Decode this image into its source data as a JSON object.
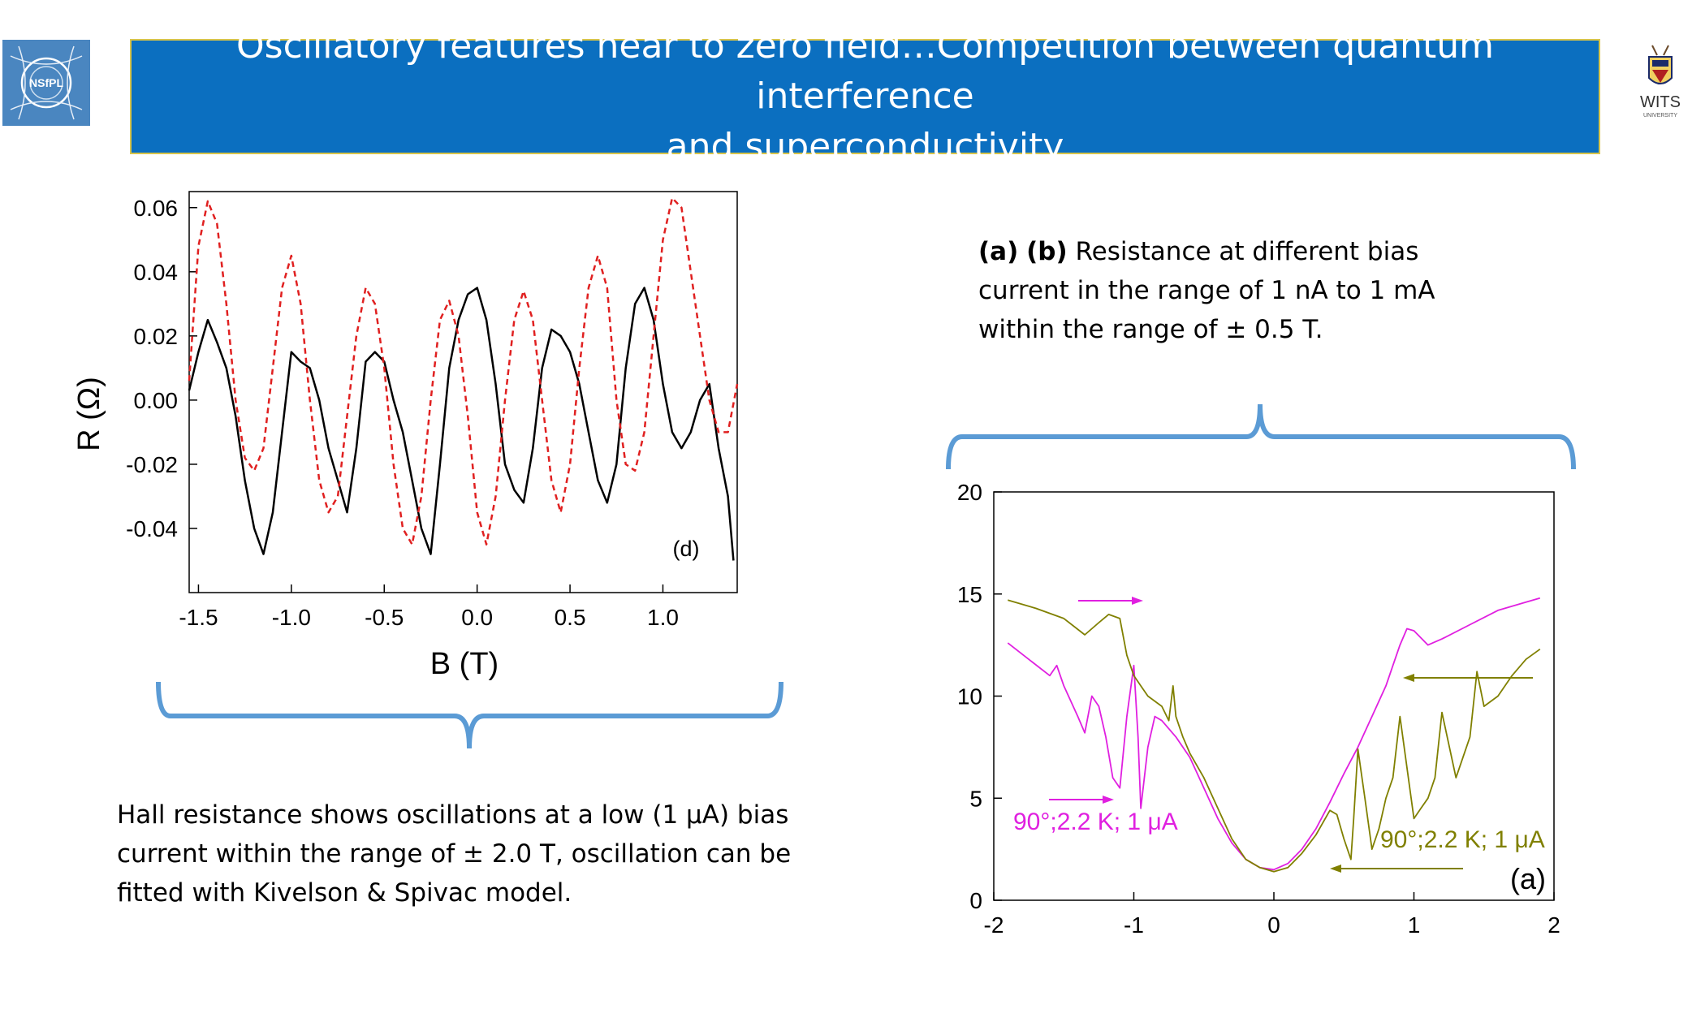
{
  "title": {
    "line1": "Oscillatory features near to zero field…Competition between quantum interference",
    "line2": "and superconductivity"
  },
  "logos": {
    "left_text": "NSfPL",
    "right_text": "WITS",
    "right_subtext": "UNIVERSITY"
  },
  "right_description": {
    "bold_a": "(a)",
    "bold_b": "(b)",
    "rest": " Resistance at different bias current in the range of 1 nA to 1 mA within the range of ± 0.5 T."
  },
  "left_description": {
    "text": "Hall resistance shows oscillations at a low (1 μA) bias current within the range of ± 2.0 T, oscillation can be fitted with Kivelson & Spivac model."
  },
  "colors": {
    "title_bg": "#0b6fc0",
    "title_border": "#d8c44a",
    "bracket": "#5b9bd5",
    "fit_red": "#e02020",
    "data_black": "#000000",
    "magenta": "#e020e0",
    "olive": "#808000"
  },
  "chart_data": [
    {
      "type": "line",
      "panel_label": "(d)",
      "xlabel": "B (T)",
      "ylabel": "R (Ω)",
      "xlim": [
        -1.55,
        1.4
      ],
      "ylim": [
        -0.06,
        0.065
      ],
      "xticks": [
        -1.5,
        -1.0,
        -0.5,
        0.0,
        0.5,
        1.0
      ],
      "xtick_labels": [
        "-1.5",
        "-1.0",
        "-0.5",
        "0.0",
        "0.5",
        "1.0"
      ],
      "yticks": [
        0.06,
        0.04,
        0.02,
        0.0,
        -0.02,
        -0.04
      ],
      "ytick_labels": [
        "0.06",
        "0.04",
        "0.02",
        "0.00",
        "-0.02",
        "-0.04"
      ],
      "grid": false,
      "series": [
        {
          "style": "solid-black",
          "x": [
            -1.55,
            -1.5,
            -1.45,
            -1.4,
            -1.35,
            -1.3,
            -1.25,
            -1.2,
            -1.15,
            -1.1,
            -1.05,
            -1.0,
            -0.95,
            -0.9,
            -0.85,
            -0.8,
            -0.75,
            -0.7,
            -0.65,
            -0.6,
            -0.55,
            -0.5,
            -0.45,
            -0.4,
            -0.35,
            -0.3,
            -0.25,
            -0.2,
            -0.15,
            -0.1,
            -0.05,
            0.0,
            0.05,
            0.1,
            0.15,
            0.2,
            0.25,
            0.3,
            0.35,
            0.4,
            0.45,
            0.5,
            0.55,
            0.6,
            0.65,
            0.7,
            0.75,
            0.8,
            0.85,
            0.9,
            0.95,
            1.0,
            1.05,
            1.1,
            1.15,
            1.2,
            1.25,
            1.3,
            1.35,
            1.38
          ],
          "y": [
            0.003,
            0.015,
            0.025,
            0.018,
            0.01,
            -0.005,
            -0.025,
            -0.04,
            -0.048,
            -0.035,
            -0.01,
            0.015,
            0.012,
            0.01,
            0.0,
            -0.015,
            -0.025,
            -0.035,
            -0.015,
            0.012,
            0.015,
            0.012,
            0.0,
            -0.01,
            -0.025,
            -0.04,
            -0.048,
            -0.02,
            0.01,
            0.025,
            0.033,
            0.035,
            0.025,
            0.005,
            -0.02,
            -0.028,
            -0.032,
            -0.015,
            0.01,
            0.022,
            0.02,
            0.015,
            0.005,
            -0.01,
            -0.025,
            -0.032,
            -0.02,
            0.01,
            0.03,
            0.035,
            0.025,
            0.005,
            -0.01,
            -0.015,
            -0.01,
            0.0,
            0.005,
            -0.015,
            -0.03,
            -0.05
          ]
        },
        {
          "style": "dashed-red",
          "x": [
            -1.55,
            -1.5,
            -1.45,
            -1.4,
            -1.35,
            -1.3,
            -1.25,
            -1.2,
            -1.15,
            -1.1,
            -1.05,
            -1.0,
            -0.95,
            -0.9,
            -0.85,
            -0.8,
            -0.75,
            -0.7,
            -0.65,
            -0.6,
            -0.55,
            -0.5,
            -0.45,
            -0.4,
            -0.35,
            -0.3,
            -0.25,
            -0.2,
            -0.15,
            -0.1,
            -0.05,
            0.0,
            0.05,
            0.1,
            0.15,
            0.2,
            0.25,
            0.3,
            0.35,
            0.4,
            0.45,
            0.5,
            0.55,
            0.6,
            0.65,
            0.7,
            0.75,
            0.8,
            0.85,
            0.9,
            0.95,
            1.0,
            1.05,
            1.1,
            1.15,
            1.2,
            1.25,
            1.3,
            1.35,
            1.4
          ],
          "y": [
            0.006,
            0.048,
            0.062,
            0.055,
            0.03,
            0.0,
            -0.018,
            -0.022,
            -0.015,
            0.01,
            0.035,
            0.045,
            0.03,
            0.0,
            -0.025,
            -0.035,
            -0.03,
            -0.005,
            0.02,
            0.035,
            0.03,
            0.01,
            -0.02,
            -0.04,
            -0.045,
            -0.03,
            0.0,
            0.025,
            0.031,
            0.02,
            -0.005,
            -0.035,
            -0.045,
            -0.03,
            0.0,
            0.025,
            0.034,
            0.025,
            0.0,
            -0.025,
            -0.035,
            -0.02,
            0.01,
            0.035,
            0.045,
            0.035,
            0.0,
            -0.02,
            -0.022,
            -0.01,
            0.02,
            0.05,
            0.063,
            0.06,
            0.04,
            0.02,
            0.0,
            -0.01,
            -0.01,
            0.005
          ]
        }
      ]
    },
    {
      "type": "line",
      "panel_label": "(a)",
      "xlim": [
        -2,
        2
      ],
      "ylim": [
        0,
        20
      ],
      "xticks": [
        -2,
        -1,
        0,
        1,
        2
      ],
      "xtick_labels": [
        "-2",
        "-1",
        "0",
        "1",
        "2"
      ],
      "yticks": [
        0,
        5,
        10,
        15,
        20
      ],
      "ytick_labels": [
        "0",
        "5",
        "10",
        "15",
        "20"
      ],
      "grid": false,
      "annotations": [
        {
          "text": "90°;2.2 K; 1 μA",
          "color": "#e020e0"
        },
        {
          "text": "90°;2.2 K; 1 μA",
          "color": "#808000"
        }
      ],
      "series": [
        {
          "color": "#e020e0",
          "x": [
            -1.9,
            -1.75,
            -1.6,
            -1.55,
            -1.5,
            -1.4,
            -1.35,
            -1.3,
            -1.25,
            -1.2,
            -1.15,
            -1.1,
            -1.05,
            -1.0,
            -0.97,
            -0.95,
            -0.9,
            -0.85,
            -0.8,
            -0.7,
            -0.6,
            -0.5,
            -0.4,
            -0.3,
            -0.2,
            -0.1,
            0.0,
            0.1,
            0.2,
            0.3,
            0.4,
            0.5,
            0.6,
            0.7,
            0.8,
            0.85,
            0.9,
            0.95,
            1.0,
            1.1,
            1.2,
            1.4,
            1.6,
            1.8,
            1.9
          ],
          "y": [
            12.6,
            11.8,
            11.0,
            11.5,
            10.5,
            9.0,
            8.2,
            10.0,
            9.5,
            8.0,
            6.0,
            5.5,
            9.0,
            11.5,
            8.0,
            4.5,
            7.5,
            9.0,
            8.8,
            8.0,
            7.0,
            5.5,
            4.0,
            2.8,
            2.0,
            1.6,
            1.5,
            1.8,
            2.5,
            3.5,
            4.8,
            6.2,
            7.5,
            9.0,
            10.5,
            11.5,
            12.5,
            13.3,
            13.2,
            12.5,
            12.8,
            13.5,
            14.2,
            14.6,
            14.8
          ]
        },
        {
          "color": "#808000",
          "x": [
            -1.9,
            -1.7,
            -1.5,
            -1.35,
            -1.25,
            -1.18,
            -1.1,
            -1.05,
            -1.0,
            -0.95,
            -0.9,
            -0.8,
            -0.75,
            -0.72,
            -0.7,
            -0.65,
            -0.6,
            -0.5,
            -0.4,
            -0.3,
            -0.2,
            -0.1,
            0.0,
            0.1,
            0.2,
            0.3,
            0.4,
            0.45,
            0.5,
            0.55,
            0.57,
            0.6,
            0.65,
            0.7,
            0.75,
            0.8,
            0.85,
            0.9,
            1.0,
            1.05,
            1.1,
            1.15,
            1.2,
            1.3,
            1.4,
            1.45,
            1.5,
            1.6,
            1.7,
            1.8,
            1.9
          ],
          "y": [
            14.7,
            14.3,
            13.8,
            13.0,
            13.6,
            14.0,
            13.8,
            12.0,
            11.0,
            10.5,
            10.0,
            9.5,
            8.8,
            10.5,
            9.0,
            8.0,
            7.2,
            6.0,
            4.5,
            3.0,
            2.0,
            1.6,
            1.4,
            1.6,
            2.3,
            3.2,
            4.4,
            4.2,
            3.0,
            2.0,
            4.0,
            7.4,
            5.0,
            2.5,
            3.5,
            5.0,
            6.0,
            9.0,
            4.0,
            4.5,
            5.0,
            6.0,
            9.2,
            6.0,
            8.0,
            11.2,
            9.5,
            10.0,
            11.0,
            11.8,
            12.3
          ]
        }
      ]
    }
  ]
}
